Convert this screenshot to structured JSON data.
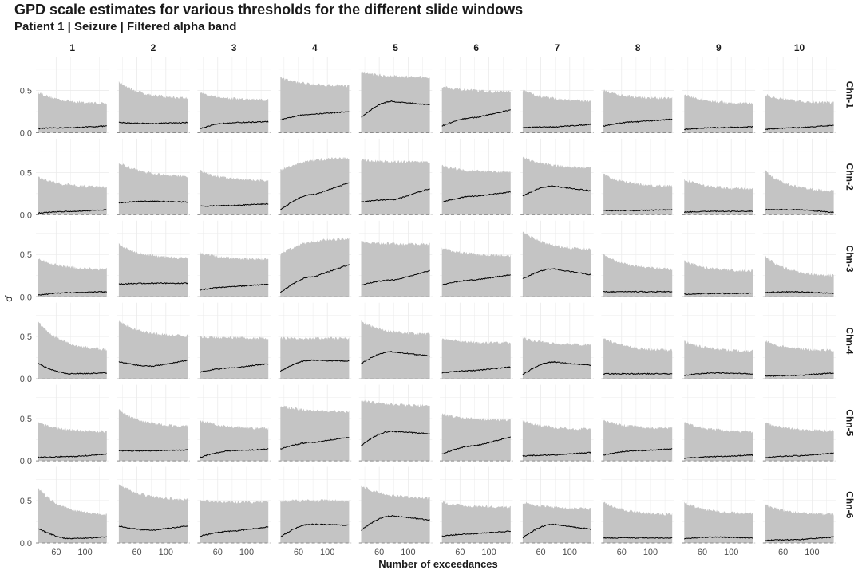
{
  "chart_data": {
    "type": "area",
    "title": "GPD scale estimates for various thresholds for the different slide windows",
    "subtitle": "Patient 1 | Seizure | Filtered alpha band",
    "xlabel": "Number of exceedances",
    "ylabel": "σ̂",
    "xlim": [
      32,
      133
    ],
    "ylim": [
      0,
      0.9
    ],
    "x_ticks": [
      60,
      100
    ],
    "y_ticks": [
      0.0,
      0.5
    ],
    "y_tick_labels": [
      "0.0",
      "0.5"
    ],
    "columns": [
      "1",
      "2",
      "3",
      "4",
      "5",
      "6",
      "7",
      "8",
      "9",
      "10"
    ],
    "rows": [
      "Chn-1",
      "Chn-2",
      "Chn-3",
      "Chn-4",
      "Chn-5",
      "Chn-6"
    ],
    "x_range": [
      35,
      130
    ],
    "estimate_start": [
      [
        0.05,
        0.12,
        0.05,
        0.15,
        0.18,
        0.08,
        0.06,
        0.08,
        0.04,
        0.04
      ],
      [
        0.02,
        0.14,
        0.1,
        0.06,
        0.15,
        0.15,
        0.22,
        0.05,
        0.03,
        0.06
      ],
      [
        0.02,
        0.15,
        0.08,
        0.05,
        0.14,
        0.14,
        0.21,
        0.06,
        0.03,
        0.05
      ],
      [
        0.18,
        0.2,
        0.08,
        0.09,
        0.18,
        0.07,
        0.05,
        0.06,
        0.04,
        0.03
      ],
      [
        0.04,
        0.12,
        0.04,
        0.14,
        0.18,
        0.08,
        0.06,
        0.07,
        0.03,
        0.04
      ],
      [
        0.17,
        0.2,
        0.08,
        0.07,
        0.15,
        0.08,
        0.06,
        0.06,
        0.05,
        0.03
      ]
    ],
    "estimate_peak": [
      [
        0.06,
        0.11,
        0.12,
        0.22,
        0.37,
        0.18,
        0.07,
        0.13,
        0.06,
        0.06
      ],
      [
        0.04,
        0.16,
        0.11,
        0.24,
        0.18,
        0.22,
        0.34,
        0.05,
        0.04,
        0.06
      ],
      [
        0.05,
        0.16,
        0.12,
        0.24,
        0.2,
        0.2,
        0.33,
        0.06,
        0.04,
        0.06
      ],
      [
        0.06,
        0.15,
        0.13,
        0.22,
        0.32,
        0.1,
        0.2,
        0.06,
        0.07,
        0.04
      ],
      [
        0.05,
        0.12,
        0.12,
        0.22,
        0.35,
        0.18,
        0.07,
        0.12,
        0.05,
        0.06
      ],
      [
        0.05,
        0.15,
        0.14,
        0.22,
        0.32,
        0.11,
        0.22,
        0.06,
        0.07,
        0.04
      ]
    ],
    "estimate_end": [
      [
        0.08,
        0.12,
        0.13,
        0.25,
        0.33,
        0.27,
        0.1,
        0.16,
        0.07,
        0.09
      ],
      [
        0.06,
        0.15,
        0.13,
        0.38,
        0.31,
        0.27,
        0.28,
        0.06,
        0.04,
        0.03
      ],
      [
        0.06,
        0.16,
        0.15,
        0.38,
        0.31,
        0.26,
        0.26,
        0.06,
        0.04,
        0.04
      ],
      [
        0.07,
        0.22,
        0.18,
        0.21,
        0.27,
        0.14,
        0.16,
        0.06,
        0.06,
        0.07
      ],
      [
        0.08,
        0.13,
        0.14,
        0.28,
        0.32,
        0.28,
        0.1,
        0.14,
        0.07,
        0.09
      ],
      [
        0.07,
        0.2,
        0.19,
        0.21,
        0.27,
        0.14,
        0.16,
        0.06,
        0.06,
        0.07
      ]
    ],
    "ci_upper_start": [
      [
        0.48,
        0.6,
        0.48,
        0.65,
        0.72,
        0.55,
        0.5,
        0.5,
        0.45,
        0.45
      ],
      [
        0.45,
        0.62,
        0.52,
        0.52,
        0.65,
        0.58,
        0.68,
        0.48,
        0.42,
        0.52
      ],
      [
        0.45,
        0.62,
        0.52,
        0.5,
        0.65,
        0.58,
        0.78,
        0.5,
        0.42,
        0.48
      ],
      [
        0.68,
        0.68,
        0.5,
        0.48,
        0.68,
        0.48,
        0.48,
        0.48,
        0.45,
        0.45
      ],
      [
        0.45,
        0.6,
        0.48,
        0.65,
        0.72,
        0.55,
        0.48,
        0.48,
        0.45,
        0.45
      ],
      [
        0.65,
        0.7,
        0.5,
        0.5,
        0.68,
        0.48,
        0.48,
        0.48,
        0.48,
        0.45
      ]
    ],
    "ci_upper_end": [
      [
        0.34,
        0.4,
        0.38,
        0.55,
        0.65,
        0.48,
        0.37,
        0.4,
        0.34,
        0.35
      ],
      [
        0.32,
        0.45,
        0.4,
        0.68,
        0.62,
        0.5,
        0.55,
        0.33,
        0.3,
        0.27
      ],
      [
        0.32,
        0.45,
        0.44,
        0.7,
        0.62,
        0.48,
        0.55,
        0.32,
        0.3,
        0.24
      ],
      [
        0.33,
        0.5,
        0.48,
        0.48,
        0.52,
        0.42,
        0.4,
        0.33,
        0.32,
        0.33
      ],
      [
        0.34,
        0.4,
        0.38,
        0.58,
        0.65,
        0.48,
        0.37,
        0.38,
        0.34,
        0.35
      ],
      [
        0.32,
        0.5,
        0.48,
        0.5,
        0.52,
        0.42,
        0.4,
        0.33,
        0.34,
        0.33
      ]
    ]
  }
}
